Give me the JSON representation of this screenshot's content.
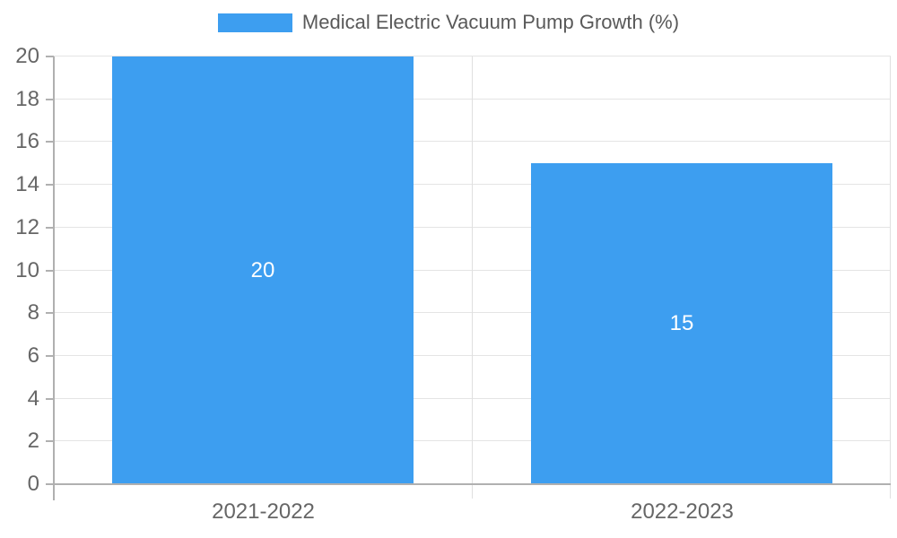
{
  "chart_data": {
    "type": "bar",
    "title": "",
    "legend": {
      "label": "Medical Electric Vacuum Pump Growth (%)",
      "position": "top"
    },
    "categories": [
      "2021-2022",
      "2022-2023"
    ],
    "series": [
      {
        "name": "Medical Electric Vacuum Pump Growth (%)",
        "values": [
          20,
          15
        ]
      }
    ],
    "value_labels": [
      "20",
      "15"
    ],
    "xlabel": "",
    "ylabel": "",
    "ylim": [
      0,
      20
    ],
    "yticks": [
      0,
      2,
      4,
      6,
      8,
      10,
      12,
      14,
      16,
      18,
      20
    ],
    "grid": true,
    "bar_width_fraction": 0.72
  },
  "colors": {
    "bar": "#3D9EF0",
    "axis": "#b0b0b0",
    "grid": "#e4e4e4",
    "boundary": "#e0e0e0",
    "tick_text": "#666666",
    "legend_text": "#595959",
    "value_text": "#ffffff",
    "background": "#ffffff"
  }
}
